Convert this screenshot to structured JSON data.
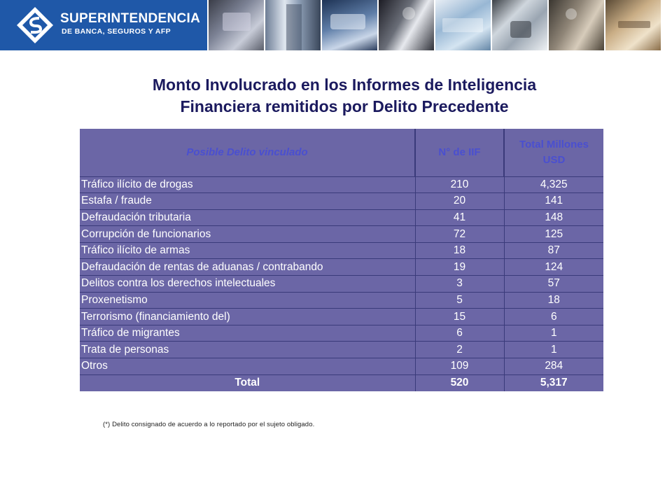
{
  "header": {
    "logo_line1": "SUPERINTENDENCIA",
    "logo_line2": "DE BANCA, SEGUROS Y AFP",
    "brand_color": "#1f58a8",
    "photos": [
      "credit-card-photo",
      "building-photo",
      "keyboard-photo",
      "business-people-photo",
      "money-photo",
      "payment-terminal-photo",
      "handshake-photo",
      "writing-photo"
    ]
  },
  "title": {
    "line1": "Monto Involucrado en los Informes de Inteligencia",
    "line2": "Financiera remitidos por Delito Precedente"
  },
  "table": {
    "headers": {
      "crime": "Posible Delito vinculado",
      "count": "N° de IIF",
      "amount_line1": "Total Millones",
      "amount_line2": "USD"
    },
    "rows": [
      {
        "crime": "Tráfico ilícito de drogas",
        "count": "210",
        "amount": "4,325"
      },
      {
        "crime": "Estafa / fraude",
        "count": "20",
        "amount": "141"
      },
      {
        "crime": "Defraudación tributaria",
        "count": "41",
        "amount": "148"
      },
      {
        "crime": "Corrupción de funcionarios",
        "count": "72",
        "amount": "125"
      },
      {
        "crime": "Tráfico ilícito de armas",
        "count": "18",
        "amount": "87"
      },
      {
        "crime": "Defraudación de rentas de aduanas / contrabando",
        "count": "19",
        "amount": "124"
      },
      {
        "crime": "Delitos contra los derechos intelectuales",
        "count": "3",
        "amount": "57"
      },
      {
        "crime": "Proxenetismo",
        "count": "5",
        "amount": "18"
      },
      {
        "crime": "Terrorismo (financiamiento del)",
        "count": "15",
        "amount": "6"
      },
      {
        "crime": "Tráfico de migrantes",
        "count": "6",
        "amount": "1"
      },
      {
        "crime": "Trata de personas",
        "count": "2",
        "amount": "1"
      },
      {
        "crime": "Otros",
        "count": "109",
        "amount": "284"
      }
    ],
    "total": {
      "label": "Total",
      "count": "520",
      "amount": "5,317"
    },
    "colors": {
      "cell_bg": "#6b66a6",
      "header_text": "#4a4fd0",
      "border": "#3a3a7a"
    }
  },
  "footnote": "(*)  Delito consignado de acuerdo a lo reportado por el sujeto obligado."
}
